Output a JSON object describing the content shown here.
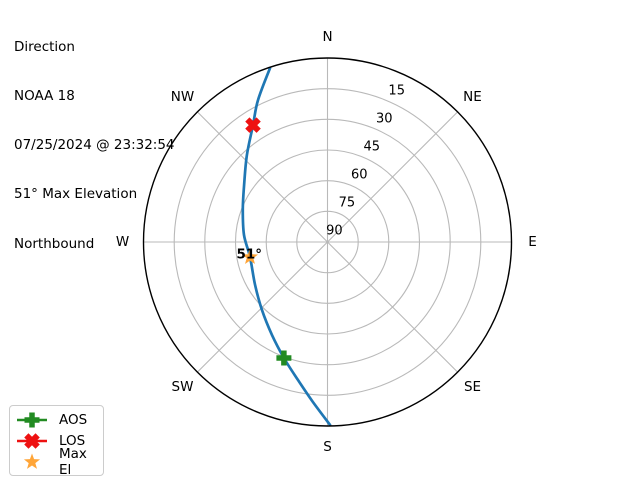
{
  "header": {
    "lines": [
      "Direction",
      "NOAA 18",
      "07/25/2024 @ 23:32:54",
      "51° Max Elevation",
      "Northbound"
    ]
  },
  "legend": {
    "items": [
      {
        "label": "AOS",
        "marker": "plus",
        "show_line": true
      },
      {
        "label": "LOS",
        "marker": "x",
        "show_line": true
      },
      {
        "label": "Max El",
        "marker": "star",
        "show_line": false
      }
    ]
  },
  "chart_data": {
    "type": "polar_pass",
    "title": "Direction",
    "satellite": "NOAA 18",
    "timestamp": "07/25/2024 @ 23:32:54",
    "max_elevation_deg": 51,
    "pass_direction": "Northbound",
    "compass_labels": [
      "N",
      "NE",
      "E",
      "SE",
      "S",
      "SW",
      "W",
      "NW"
    ],
    "elevation_tick_labels": [
      15,
      30,
      45,
      60,
      75,
      90
    ],
    "elevation_range": [
      0,
      90
    ],
    "grid_on": true,
    "legend_position": "lower-left",
    "track_az_el": [
      [
        179.2,
        0.5
      ],
      [
        185.2,
        11.4
      ],
      [
        192.1,
        21.0
      ],
      [
        200.6,
        29.4
      ],
      [
        210.8,
        37.0
      ],
      [
        223.9,
        43.8
      ],
      [
        239.3,
        48.8
      ],
      [
        259.0,
        51.4
      ],
      [
        274.8,
        49.0
      ],
      [
        290.7,
        45.7
      ],
      [
        304.3,
        40.6
      ],
      [
        317.2,
        32.0
      ],
      [
        327.5,
        22.2
      ],
      [
        333.9,
        12.7
      ],
      [
        341.7,
        0.4
      ]
    ],
    "markers": {
      "aos": {
        "az": 200.6,
        "el": 29.4
      },
      "los": {
        "az": 327.5,
        "el": 22.2
      },
      "max_el": {
        "az": 259.0,
        "el": 51.4,
        "annotation": "51°"
      }
    },
    "colors": {
      "track": "#1f77b4",
      "aos": "#228b22",
      "los": "#ee1111",
      "max_el": "#ffa538",
      "grid": "#b9b9b9",
      "spine": "#000000",
      "text": "#000000"
    }
  }
}
